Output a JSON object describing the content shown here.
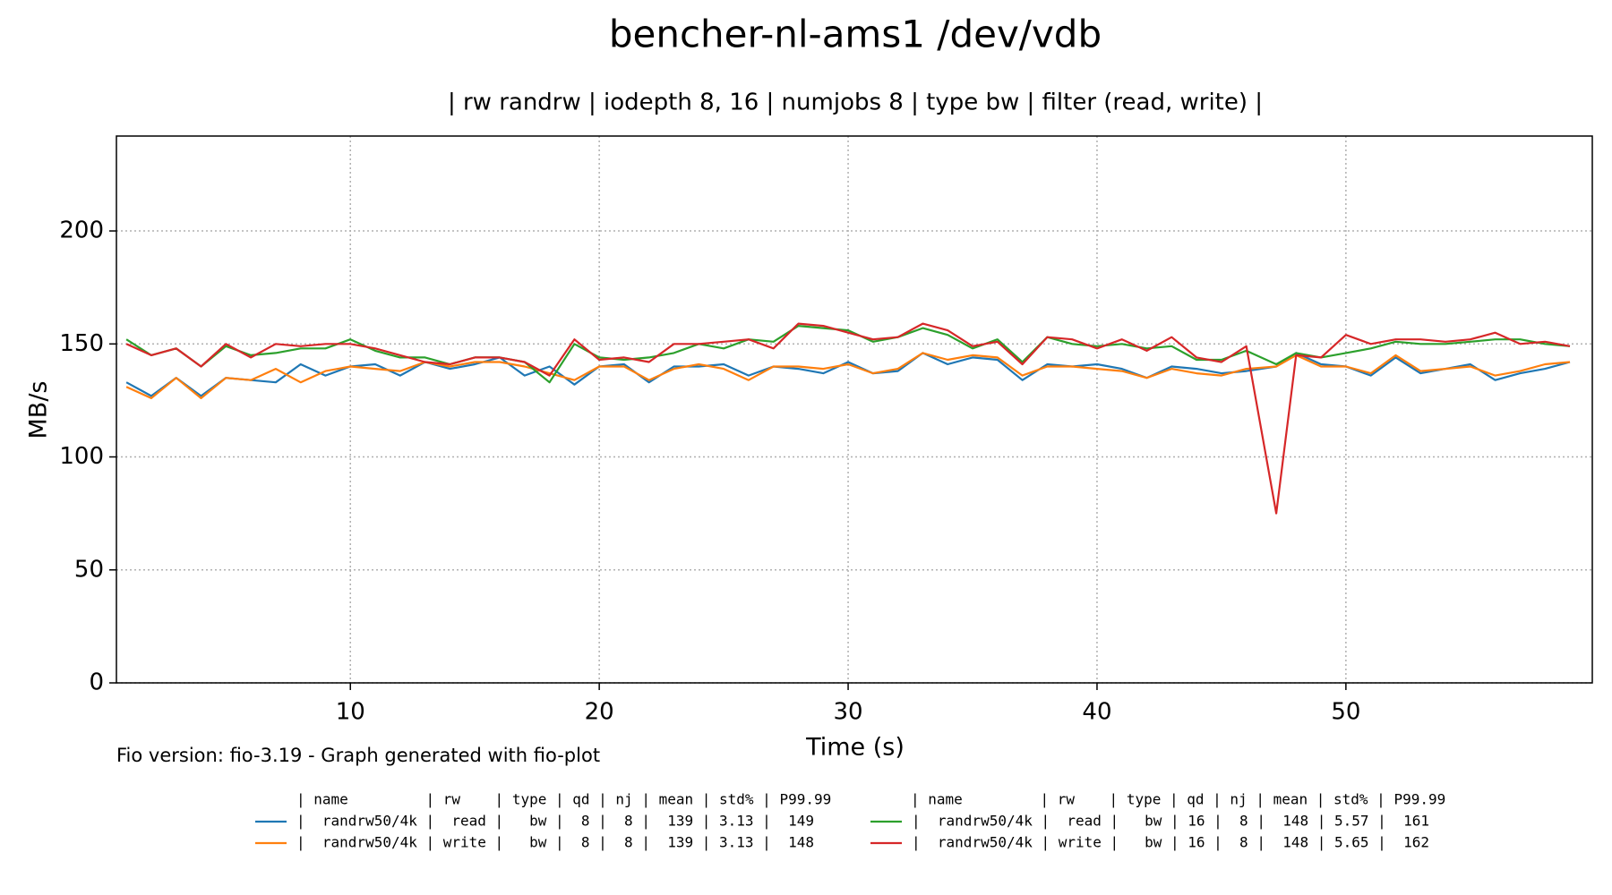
{
  "chart_data": {
    "type": "line",
    "title": "bencher-nl-ams1 /dev/vdb",
    "subtitle": "| rw randrw | iodepth 8, 16 | numjobs 8 | type bw | filter (read, write) |",
    "xlabel": "Time (s)",
    "ylabel": "MB/s",
    "footnote": "Fio version: fio-3.19 - Graph generated with fio-plot",
    "legend_header": "| name         | rw    | type | qd | nj | mean | std% | P99.99",
    "xlim": [
      0.6,
      59.9
    ],
    "ylim": [
      0,
      242
    ],
    "xticks": [
      10,
      20,
      30,
      40,
      50
    ],
    "yticks": [
      0,
      50,
      100,
      150,
      200
    ],
    "grid": true,
    "x": [
      1,
      2,
      3,
      4,
      5,
      6,
      7,
      8,
      9,
      10,
      11,
      12,
      13,
      14,
      15,
      16,
      17,
      18,
      19,
      20,
      21,
      22,
      23,
      24,
      25,
      26,
      27,
      28,
      29,
      30,
      31,
      32,
      33,
      34,
      35,
      36,
      37,
      38,
      39,
      40,
      41,
      42,
      43,
      44,
      45,
      46,
      47.2,
      48,
      49,
      50,
      51,
      52,
      53,
      54,
      55,
      56,
      57,
      58,
      59
    ],
    "series": [
      {
        "name": "|  randrw50/4k |  read |   bw |  8 |  8 |  139 | 3.13 |  149",
        "color": "#1f77b4",
        "values": [
          133,
          127,
          135,
          127,
          135,
          134,
          133,
          141,
          136,
          140,
          141,
          136,
          142,
          139,
          141,
          144,
          136,
          140,
          132,
          140,
          141,
          133,
          140,
          140,
          141,
          136,
          140,
          139,
          137,
          142,
          137,
          138,
          146,
          141,
          144,
          143,
          134,
          141,
          140,
          141,
          139,
          135,
          140,
          139,
          137,
          138,
          140,
          146,
          141,
          140,
          136,
          144,
          137,
          139,
          141,
          134,
          137,
          139,
          142
        ]
      },
      {
        "name": "|  randrw50/4k | write |   bw |  8 |  8 |  139 | 3.13 |  148",
        "color": "#ff7f0e",
        "values": [
          131,
          126,
          135,
          126,
          135,
          134,
          139,
          133,
          138,
          140,
          139,
          138,
          142,
          140,
          142,
          142,
          140,
          137,
          134,
          140,
          140,
          134,
          139,
          141,
          139,
          134,
          140,
          140,
          139,
          141,
          137,
          139,
          146,
          143,
          145,
          144,
          136,
          140,
          140,
          139,
          138,
          135,
          139,
          137,
          136,
          139,
          140,
          145,
          140,
          140,
          137,
          145,
          138,
          139,
          140,
          136,
          138,
          141,
          142
        ]
      },
      {
        "name": "|  randrw50/4k |  read |   bw | 16 |  8 |  148 | 5.57 |  161",
        "color": "#2ca02c",
        "values": [
          152,
          145,
          148,
          140,
          149,
          145,
          146,
          148,
          148,
          152,
          147,
          144,
          144,
          141,
          144,
          144,
          142,
          133,
          150,
          144,
          143,
          144,
          146,
          150,
          148,
          152,
          151,
          158,
          157,
          156,
          151,
          153,
          157,
          154,
          148,
          152,
          142,
          153,
          150,
          149,
          150,
          148,
          149,
          143,
          143,
          147,
          141,
          146,
          144,
          146,
          148,
          151,
          150,
          150,
          151,
          152,
          152,
          150,
          149
        ]
      },
      {
        "name": "|  randrw50/4k | write |   bw | 16 |  8 |  148 | 5.65 |  162",
        "color": "#d62728",
        "values": [
          150,
          145,
          148,
          140,
          150,
          144,
          150,
          149,
          150,
          150,
          148,
          145,
          142,
          141,
          144,
          144,
          142,
          136,
          152,
          143,
          144,
          142,
          150,
          150,
          151,
          152,
          148,
          159,
          158,
          155,
          152,
          153,
          159,
          156,
          149,
          151,
          141,
          153,
          152,
          148,
          152,
          147,
          153,
          144,
          142,
          149,
          75,
          145,
          144,
          154,
          150,
          152,
          152,
          151,
          152,
          155,
          150,
          151,
          149
        ]
      }
    ]
  }
}
